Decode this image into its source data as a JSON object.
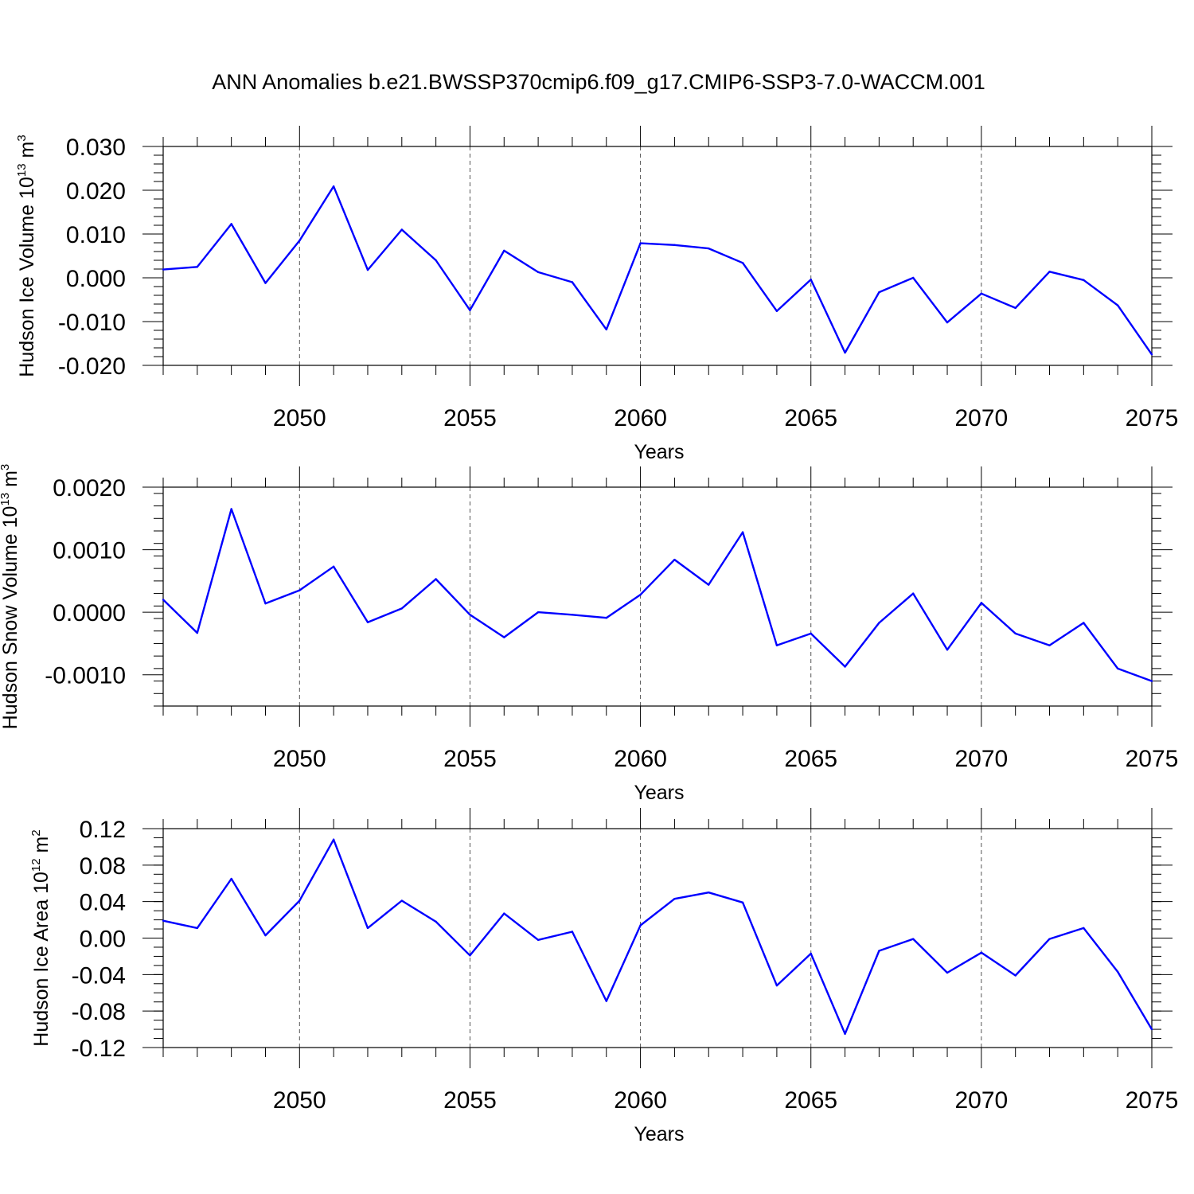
{
  "title": "ANN Anomalies b.e21.BWSSP370cmip6.f09_g17.CMIP6-SSP3-7.0-WACCM.001",
  "colors": {
    "line": "#0000ff",
    "grid": "#555555"
  },
  "chart_data": [
    {
      "type": "line",
      "ylabel": {
        "main": "Hudson Ice Volume 10",
        "exp": "13",
        "unit": " m",
        "unit_exp": "3"
      },
      "xlabel": "Years",
      "xlim": [
        2046,
        2075
      ],
      "ylim": [
        -0.02,
        0.03
      ],
      "xticks": [
        "2050",
        "2055",
        "2060",
        "2065",
        "2070",
        "2075"
      ],
      "yticks": [
        "-0.020",
        "-0.010",
        "0.000",
        "0.010",
        "0.020",
        "0.030"
      ],
      "grid": "x-dashed",
      "series": [
        {
          "x": [
            2046,
            2047,
            2048,
            2049,
            2050,
            2051,
            2052,
            2053,
            2054,
            2055,
            2056,
            2057,
            2058,
            2059,
            2060,
            2061,
            2062,
            2063,
            2064,
            2065,
            2066,
            2067,
            2068,
            2069,
            2070,
            2071,
            2072,
            2073,
            2074,
            2075
          ],
          "values": [
            0.0019,
            0.0025,
            0.0123,
            -0.0012,
            0.0085,
            0.0209,
            0.0018,
            0.011,
            0.004,
            -0.0074,
            0.0062,
            0.0013,
            -0.001,
            -0.0118,
            0.0079,
            0.0075,
            0.0067,
            0.0034,
            -0.0076,
            -0.0004,
            -0.0171,
            -0.0033,
            0.0,
            -0.0102,
            -0.0036,
            -0.0069,
            0.0014,
            -0.0005,
            -0.0063,
            -0.0175
          ]
        }
      ]
    },
    {
      "type": "line",
      "ylabel": {
        "main": "Hudson Snow Volume 10",
        "exp": "13",
        "unit": " m",
        "unit_exp": "3"
      },
      "xlabel": "Years",
      "xlim": [
        2046,
        2075
      ],
      "ylim": [
        -0.0015,
        0.002
      ],
      "xticks": [
        "2050",
        "2055",
        "2060",
        "2065",
        "2070",
        "2075"
      ],
      "yticks": [
        "-0.0010",
        "0.0000",
        "0.0010",
        "0.0020"
      ],
      "grid": "x-dashed",
      "series": [
        {
          "x": [
            2046,
            2047,
            2048,
            2049,
            2050,
            2051,
            2052,
            2053,
            2054,
            2055,
            2056,
            2057,
            2058,
            2059,
            2060,
            2061,
            2062,
            2063,
            2064,
            2065,
            2066,
            2067,
            2068,
            2069,
            2070,
            2071,
            2072,
            2073,
            2074,
            2075
          ],
          "values": [
            0.0002,
            -0.00033,
            0.00165,
            0.00014,
            0.00035,
            0.00073,
            -0.00016,
            6e-05,
            0.00053,
            -4e-05,
            -0.0004,
            0.0,
            -4e-05,
            -9e-05,
            0.00028,
            0.00084,
            0.00044,
            0.00128,
            -0.00053,
            -0.00034,
            -0.00087,
            -0.00017,
            0.0003,
            -0.0006,
            0.00015,
            -0.00034,
            -0.00053,
            -0.00017,
            -0.0009,
            -0.0011
          ]
        }
      ]
    },
    {
      "type": "line",
      "ylabel": {
        "main": "Hudson Ice Area 10",
        "exp": "12",
        "unit": " m",
        "unit_exp": "2"
      },
      "xlabel": "Years",
      "xlim": [
        2046,
        2075
      ],
      "ylim": [
        -0.12,
        0.12
      ],
      "xticks": [
        "2050",
        "2055",
        "2060",
        "2065",
        "2070",
        "2075"
      ],
      "yticks": [
        "-0.12",
        "-0.08",
        "-0.04",
        "0.00",
        "0.04",
        "0.08",
        "0.12"
      ],
      "grid": "x-dashed",
      "series": [
        {
          "x": [
            2046,
            2047,
            2048,
            2049,
            2050,
            2051,
            2052,
            2053,
            2054,
            2055,
            2056,
            2057,
            2058,
            2059,
            2060,
            2061,
            2062,
            2063,
            2064,
            2065,
            2066,
            2067,
            2068,
            2069,
            2070,
            2071,
            2072,
            2073,
            2074,
            2075
          ],
          "values": [
            0.019,
            0.011,
            0.065,
            0.003,
            0.041,
            0.108,
            0.011,
            0.041,
            0.018,
            -0.019,
            0.027,
            -0.002,
            0.007,
            -0.069,
            0.014,
            0.043,
            0.05,
            0.039,
            -0.052,
            -0.017,
            -0.105,
            -0.014,
            -0.001,
            -0.038,
            -0.016,
            -0.041,
            -0.001,
            0.011,
            -0.037,
            -0.1
          ]
        }
      ]
    }
  ]
}
